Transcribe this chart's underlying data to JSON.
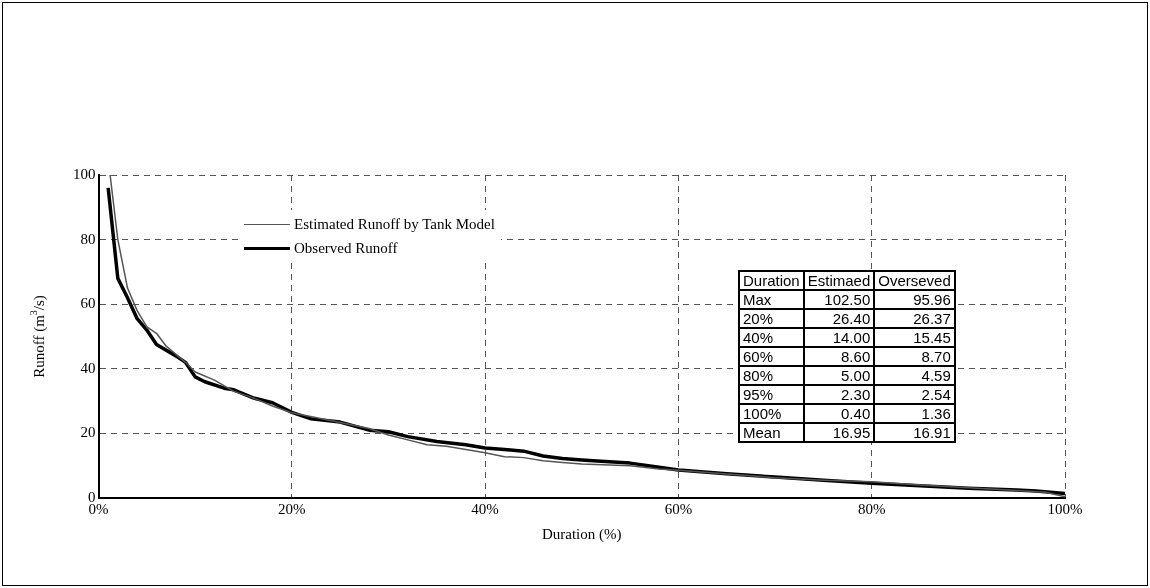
{
  "chart_data": {
    "type": "line",
    "xlabel": "Duration (%)",
    "ylabel": "Runoff (m$^{3}$/s)",
    "xlim": [
      0,
      100
    ],
    "xticks": [
      {
        "value": 0,
        "label": "0%"
      },
      {
        "value": 20,
        "label": "20%"
      },
      {
        "value": 40,
        "label": "40%"
      },
      {
        "value": 60,
        "label": "60%"
      },
      {
        "value": 80,
        "label": "80%"
      },
      {
        "value": 100,
        "label": "100%"
      }
    ],
    "ylim": [
      0,
      100
    ],
    "yticks": [
      0,
      20,
      40,
      60,
      80,
      100
    ],
    "grid": true,
    "legend": "top left",
    "marker": "none",
    "line_style": "solid",
    "series": [
      {
        "name": "Estimated Runoff by Tank Model",
        "color": "#555555",
        "x": [
          1.2,
          2,
          3,
          4,
          5,
          6,
          7,
          9,
          10,
          12,
          14,
          16,
          18,
          20,
          24,
          28,
          30,
          32,
          34,
          36,
          38,
          40,
          42,
          44,
          46,
          48,
          50,
          55,
          58,
          60,
          65,
          70,
          75,
          80,
          85,
          90,
          95,
          98,
          100
        ],
        "values": [
          100,
          80,
          65,
          58,
          53,
          51,
          47,
          42,
          39,
          36.5,
          33,
          31,
          28.5,
          26.4,
          24,
          21.5,
          19.5,
          18,
          16.5,
          16,
          15,
          14,
          12.8,
          12.5,
          11.5,
          11,
          10.5,
          10,
          9,
          8.6,
          7.4,
          6.3,
          5.5,
          5,
          4,
          3.2,
          2.3,
          1.8,
          0.4
        ]
      },
      {
        "name": "Observed Runoff",
        "color": "#000000",
        "x": [
          1,
          2,
          3,
          4,
          5,
          6,
          8,
          9,
          10,
          11,
          13,
          14,
          16,
          18,
          20,
          22,
          25,
          28,
          30,
          32,
          35,
          38,
          40,
          42,
          44,
          46,
          48,
          50,
          52,
          55,
          58,
          60,
          65,
          70,
          75,
          80,
          85,
          90,
          95,
          97,
          100
        ],
        "values": [
          96,
          68,
          62,
          55.5,
          52,
          47.5,
          44,
          42,
          37.5,
          36,
          34,
          33.5,
          31,
          29.5,
          26.5,
          24.5,
          23.5,
          21,
          20.5,
          19,
          17.5,
          16.5,
          15.5,
          15,
          14.5,
          13,
          12.2,
          11.8,
          11.4,
          10.8,
          9.5,
          8.7,
          7.5,
          6.5,
          5.5,
          4.6,
          3.8,
          3,
          2.5,
          2.2,
          1.4
        ]
      }
    ],
    "annotations": [
      "Duration",
      "Estimaed",
      "Overseved",
      "Max",
      "102.50",
      "95.96",
      "20%",
      "26.40",
      "26.37",
      "40%",
      "14.00",
      "15.45",
      "60%",
      "8.60",
      "8.70",
      "80%",
      "5.00",
      "4.59",
      "95%",
      "2.30",
      "2.54",
      "100%",
      "0.40",
      "1.36",
      "Mean",
      "16.95",
      "16.91"
    ]
  }
}
